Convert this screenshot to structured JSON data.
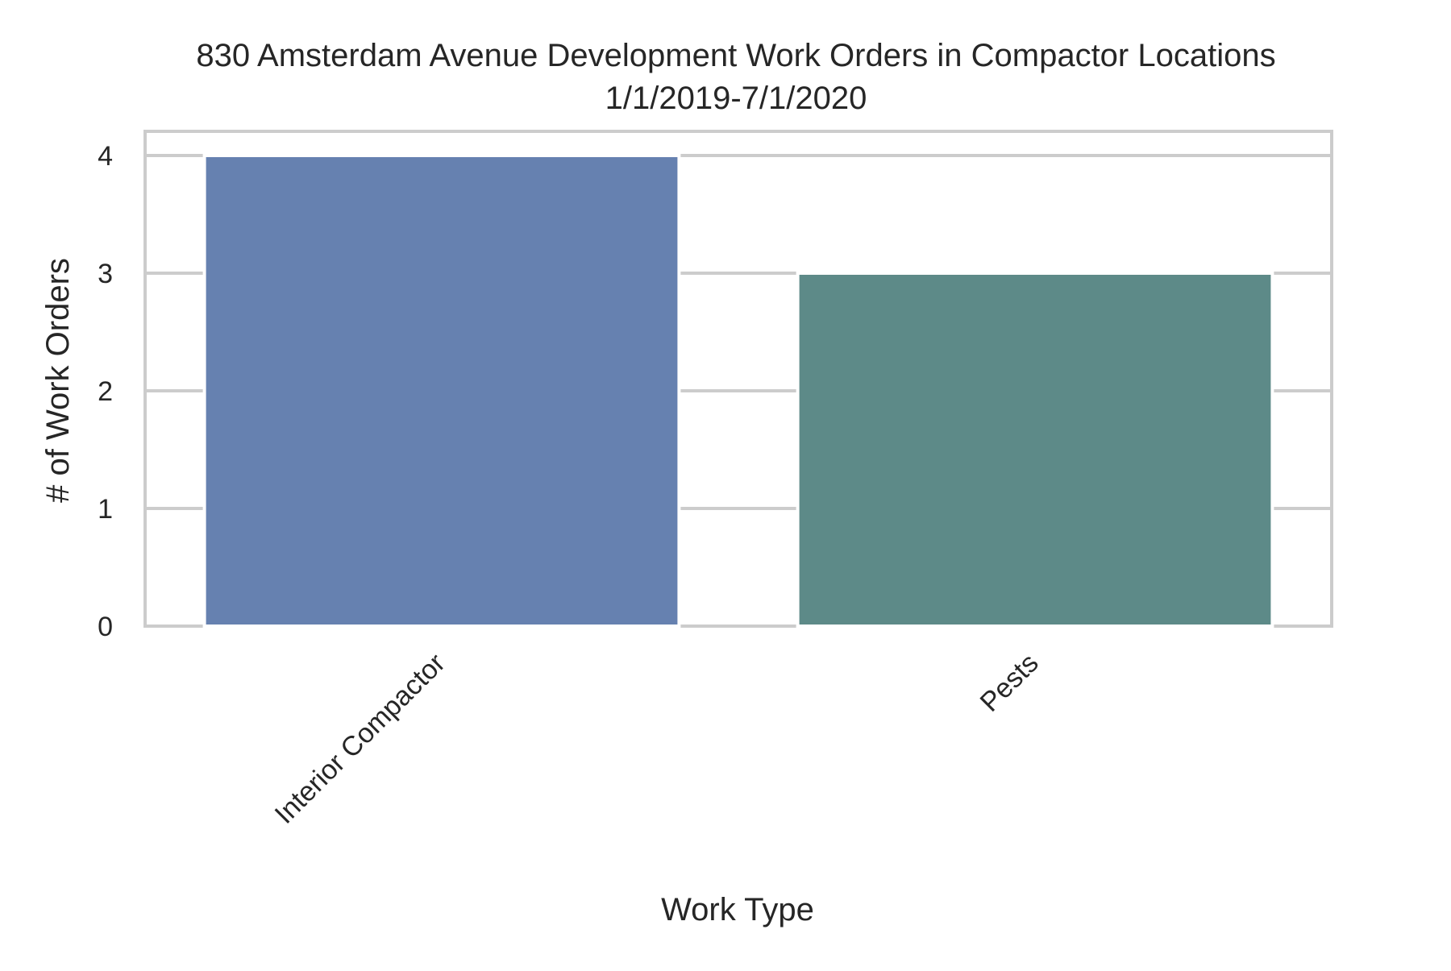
{
  "chart_data": {
    "type": "bar",
    "title": "830 Amsterdam Avenue Development Work Orders in Compactor Locations",
    "subtitle": "1/1/2019-7/1/2020",
    "xlabel": "Work Type",
    "ylabel": "# of Work Orders",
    "categories": [
      "Interior Compactor",
      "Pests"
    ],
    "values": [
      4,
      3
    ],
    "colors": [
      "#6681b0",
      "#5d8a88"
    ],
    "y_ticks": [
      "0",
      "1",
      "2",
      "3",
      "4"
    ],
    "ylim": [
      0,
      4.2
    ],
    "grid": true,
    "legend": "none",
    "x_tick_rotation": "45"
  }
}
